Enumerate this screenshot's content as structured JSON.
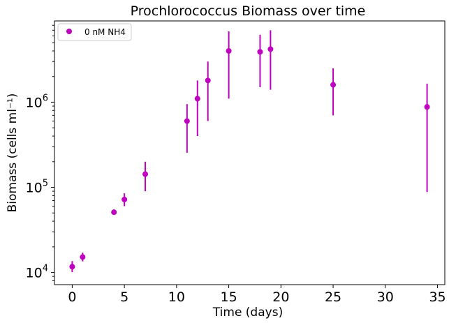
{
  "chart_data": {
    "type": "scatter",
    "title": "Prochlorococcus Biomass over time",
    "xlabel": "Time (days)",
    "ylabel": "Biomass (cells  ml⁻¹)",
    "yscale": "log",
    "xlim": [
      -1.7,
      35.7
    ],
    "ylim": [
      7200,
      9000000
    ],
    "x_ticks": [
      0,
      5,
      10,
      15,
      20,
      25,
      30,
      35
    ],
    "y_ticks": [
      {
        "value": 10000,
        "base": "10",
        "exp": "4"
      },
      {
        "value": 100000,
        "base": "10",
        "exp": "5"
      },
      {
        "value": 1000000,
        "base": "10",
        "exp": "6"
      }
    ],
    "legend": {
      "position": "top-left"
    },
    "series": [
      {
        "name": "0 nM NH4",
        "color": "#bf00bf",
        "marker": "circle",
        "points": [
          {
            "x": 0,
            "y": 11700,
            "y_low": 10100,
            "y_high": 13600
          },
          {
            "x": 1,
            "y": 15200,
            "y_low": 13500,
            "y_high": 17100
          },
          {
            "x": 4,
            "y": 51000,
            "y_low": 48000,
            "y_high": 55000
          },
          {
            "x": 5,
            "y": 72000,
            "y_low": 60000,
            "y_high": 85000
          },
          {
            "x": 7,
            "y": 143000,
            "y_low": 90000,
            "y_high": 200000
          },
          {
            "x": 11,
            "y": 600000,
            "y_low": 255000,
            "y_high": 950000
          },
          {
            "x": 12,
            "y": 1100000,
            "y_low": 400000,
            "y_high": 1800000
          },
          {
            "x": 13,
            "y": 1800000,
            "y_low": 600000,
            "y_high": 3000000
          },
          {
            "x": 15,
            "y": 4000000,
            "y_low": 1100000,
            "y_high": 6800000
          },
          {
            "x": 18,
            "y": 3900000,
            "y_low": 1500000,
            "y_high": 6200000
          },
          {
            "x": 19,
            "y": 4200000,
            "y_low": 1400000,
            "y_high": 7000000
          },
          {
            "x": 25,
            "y": 1600000,
            "y_low": 700000,
            "y_high": 2500000
          },
          {
            "x": 34,
            "y": 880000,
            "y_low": 88000,
            "y_high": 1650000
          }
        ]
      }
    ]
  }
}
